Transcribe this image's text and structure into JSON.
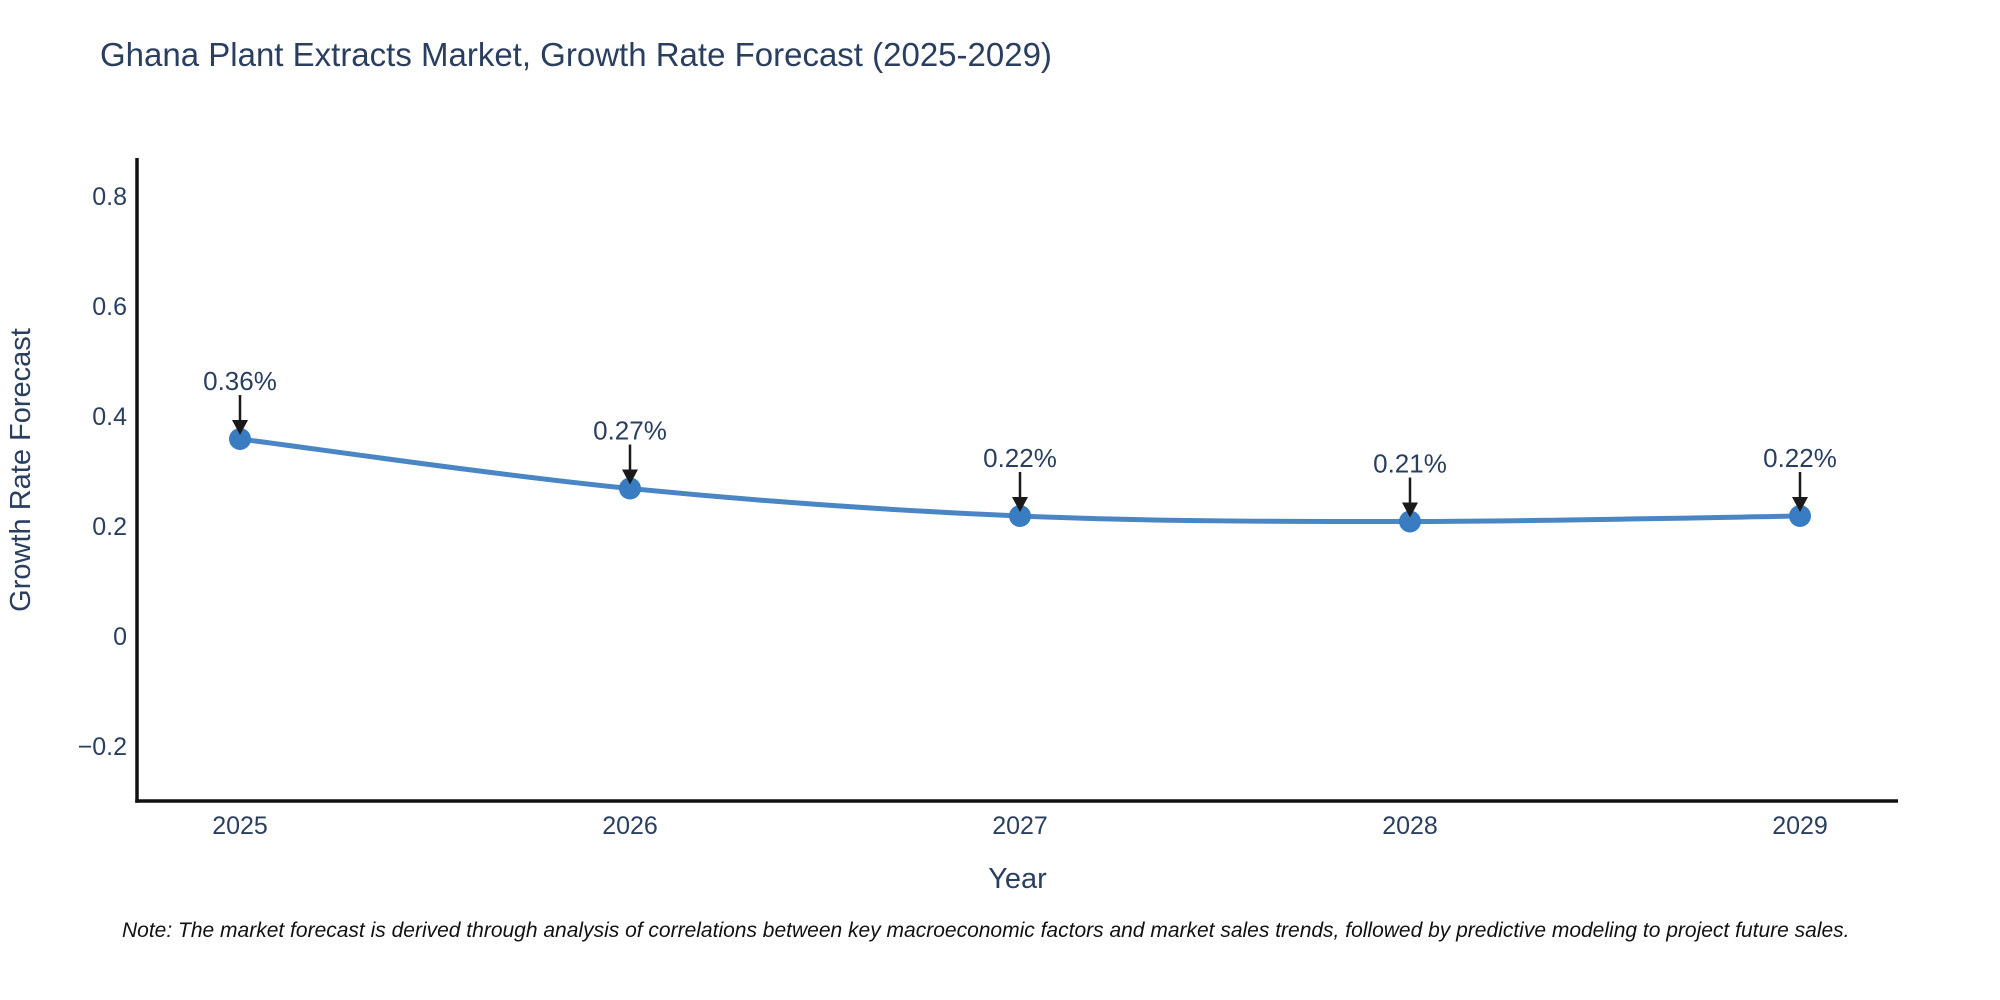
{
  "chart_data": {
    "type": "line",
    "title": "Ghana Plant Extracts Market, Growth Rate Forecast (2025-2029)",
    "xlabel": "Year",
    "ylabel": "Growth Rate Forecast",
    "categories": [
      "2025",
      "2026",
      "2027",
      "2028",
      "2029"
    ],
    "series": [
      {
        "name": "Growth Rate Forecast",
        "values": [
          0.36,
          0.27,
          0.22,
          0.21,
          0.22
        ],
        "point_labels": [
          "0.36%",
          "0.27%",
          "0.22%",
          "0.21%",
          "0.22%"
        ]
      }
    ],
    "ylim": [
      -0.3,
      0.87
    ],
    "ytick_values": [
      0.8,
      0.6,
      0.4,
      0.2,
      0,
      -0.2
    ],
    "ytick_labels": [
      "0.8",
      "0.6",
      "0.4",
      "0.2",
      "0",
      "−0.2"
    ],
    "grid": false,
    "legend_position": "none",
    "line_shape": "spline",
    "marker": "circle",
    "annotation_style": "value label with downward arrow to point"
  },
  "colors": {
    "line": "#4a86c3",
    "marker": "#3a7cc2",
    "axis_line": "#111111",
    "label_text": "#2a3f5f",
    "arrow": "#1a1a1a",
    "note_text": "#111111",
    "background": "#ffffff"
  },
  "note": "Note: The market forecast is derived through analysis of correlations between key macroeconomic factors and market sales trends, followed by predictive modeling to project future sales."
}
